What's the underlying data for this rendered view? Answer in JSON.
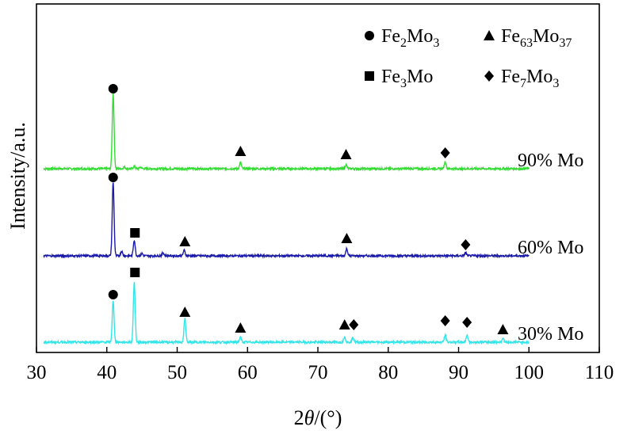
{
  "chart_data": {
    "type": "line",
    "xlabel": "2θ/(°)",
    "ylabel": "Intensity/a.u.",
    "xlim": [
      30,
      110
    ],
    "xticks": [
      30,
      40,
      50,
      60,
      70,
      80,
      90,
      100,
      110
    ],
    "grid": false,
    "legend_position": "top-right",
    "legend": [
      {
        "base": "Fe",
        "sub1": "2",
        "mid": "Mo",
        "sub2": "3",
        "marker": "circle"
      },
      {
        "base": "Fe",
        "sub1": "63",
        "mid": "Mo",
        "sub2": "37",
        "marker": "triangle"
      },
      {
        "base": "Fe",
        "sub1": "3",
        "mid": "Mo",
        "sub2": "",
        "marker": "square"
      },
      {
        "base": "Fe",
        "sub1": "7",
        "mid": "Mo",
        "sub2": "3",
        "marker": "diamond"
      }
    ],
    "series": [
      {
        "name": "90% Mo",
        "color": "#33dd33",
        "x_range": [
          31,
          100
        ],
        "peaks": [
          [
            40.9,
            95
          ],
          [
            42.5,
            2
          ],
          [
            43.9,
            3
          ],
          [
            44.8,
            2
          ],
          [
            59.0,
            8
          ],
          [
            74.0,
            5
          ],
          [
            88.1,
            9
          ]
        ],
        "markers": [
          {
            "x": 40.9,
            "shape": "circle",
            "above": 101
          },
          {
            "x": 59.0,
            "shape": "triangle",
            "above": 22
          },
          {
            "x": 74.0,
            "shape": "triangle",
            "above": 18
          },
          {
            "x": 88.1,
            "shape": "diamond",
            "above": 20
          }
        ]
      },
      {
        "name": "60% Mo",
        "color": "#1a1aaa",
        "x_range": [
          31,
          100
        ],
        "peaks": [
          [
            40.9,
            93
          ],
          [
            42.1,
            6
          ],
          [
            43.9,
            20
          ],
          [
            45.0,
            3
          ],
          [
            48.0,
            4
          ],
          [
            51.0,
            7
          ],
          [
            74.1,
            9
          ],
          [
            91.0,
            4
          ]
        ],
        "markers": [
          {
            "x": 40.9,
            "shape": "circle",
            "above": 99
          },
          {
            "x": 44.0,
            "shape": "square",
            "above": 29
          },
          {
            "x": 51.1,
            "shape": "triangle",
            "above": 18
          },
          {
            "x": 74.1,
            "shape": "triangle",
            "above": 22
          },
          {
            "x": 91.0,
            "shape": "diamond",
            "above": 14
          }
        ]
      },
      {
        "name": "30% Mo",
        "color": "#33e5e8",
        "x_range": [
          31,
          100
        ],
        "peaks": [
          [
            40.9,
            52
          ],
          [
            43.9,
            76
          ],
          [
            51.1,
            30
          ],
          [
            59.0,
            6
          ],
          [
            73.8,
            7
          ],
          [
            75.0,
            6
          ],
          [
            88.1,
            9
          ],
          [
            91.2,
            9
          ],
          [
            96.3,
            5
          ]
        ],
        "markers": [
          {
            "x": 40.9,
            "shape": "circle",
            "above": 60
          },
          {
            "x": 44.0,
            "shape": "square",
            "above": 88
          },
          {
            "x": 51.1,
            "shape": "triangle",
            "above": 38
          },
          {
            "x": 59.0,
            "shape": "triangle",
            "above": 18
          },
          {
            "x": 73.8,
            "shape": "triangle",
            "above": 22
          },
          {
            "x": 75.1,
            "shape": "diamond",
            "above": 22
          },
          {
            "x": 88.1,
            "shape": "diamond",
            "above": 27
          },
          {
            "x": 91.2,
            "shape": "diamond",
            "above": 25
          },
          {
            "x": 96.3,
            "shape": "triangle",
            "above": 16
          }
        ]
      }
    ]
  }
}
